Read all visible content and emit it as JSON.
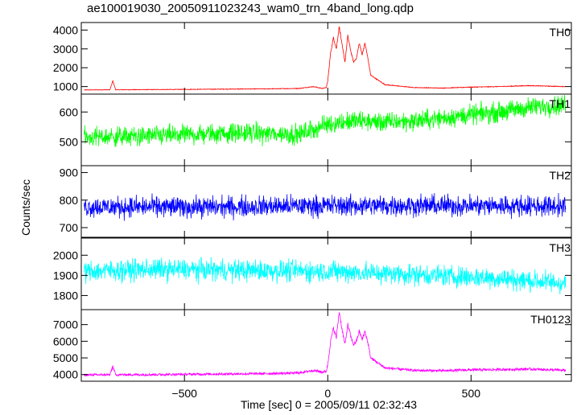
{
  "chart_data": {
    "type": "line",
    "title": "ae100019030_20050911023243_wam0_trn_4band_long.qdp",
    "xlabel": "Time [sec] 0 = 2005/09/11 02:32:43",
    "ylabel": "Counts/sec",
    "xlim": [
      -860,
      850
    ],
    "x_ticks": [
      -500,
      0,
      500
    ],
    "x_tick_labels": [
      "−500",
      "0",
      "500"
    ],
    "shared_x_axis": true,
    "panels": [
      {
        "name": "TH0",
        "color": "#ff0000",
        "ylim": [
          600,
          4400
        ],
        "y_ticks": [
          1000,
          2000,
          3000,
          4000
        ],
        "x": [
          -850,
          -760,
          -750,
          -740,
          -600,
          -400,
          -200,
          -100,
          -50,
          -20,
          -5,
          0,
          10,
          20,
          30,
          40,
          50,
          60,
          70,
          80,
          90,
          100,
          110,
          120,
          130,
          140,
          150,
          200,
          300,
          400,
          500,
          600,
          700,
          830
        ],
        "y": [
          820,
          830,
          1300,
          830,
          840,
          860,
          880,
          900,
          1000,
          900,
          950,
          1300,
          2800,
          3600,
          3000,
          4200,
          3200,
          2300,
          3700,
          2900,
          2300,
          2500,
          3300,
          2700,
          3300,
          2500,
          1600,
          1100,
          950,
          920,
          970,
          1000,
          1050,
          1000
        ]
      },
      {
        "name": "TH1",
        "color": "#00ff00",
        "ylim": [
          420,
          660
        ],
        "y_ticks": [
          500,
          600
        ],
        "x": [
          -850,
          -600,
          -300,
          -100,
          0,
          100,
          200,
          300,
          400,
          500,
          600,
          700,
          830
        ],
        "y": [
          515,
          520,
          530,
          525,
          560,
          570,
          565,
          570,
          580,
          590,
          600,
          615,
          625
        ],
        "noise": 28
      },
      {
        "name": "TH2",
        "color": "#0000ff",
        "ylim": [
          665,
          925
        ],
        "y_ticks": [
          700,
          800,
          900
        ],
        "x": [
          -850,
          -400,
          0,
          400,
          830
        ],
        "y": [
          775,
          775,
          780,
          780,
          778
        ],
        "noise": 32
      },
      {
        "name": "TH3",
        "color": "#00ffff",
        "ylim": [
          1730,
          2085
        ],
        "y_ticks": [
          1800,
          1900,
          2000
        ],
        "x": [
          -850,
          -600,
          -300,
          0,
          300,
          600,
          830
        ],
        "y": [
          1920,
          1930,
          1925,
          1920,
          1905,
          1885,
          1860
        ],
        "noise": 45
      },
      {
        "name": "TH0123",
        "color": "#ff00ff",
        "ylim": [
          3600,
          7900
        ],
        "y_ticks": [
          4000,
          5000,
          6000,
          7000
        ],
        "x": [
          -850,
          -760,
          -750,
          -740,
          -600,
          -400,
          -200,
          -100,
          -50,
          -20,
          -5,
          0,
          10,
          20,
          30,
          40,
          50,
          60,
          70,
          80,
          90,
          100,
          110,
          120,
          130,
          140,
          150,
          200,
          300,
          400,
          500,
          600,
          700,
          830
        ],
        "y": [
          3980,
          3990,
          4500,
          3990,
          4000,
          4030,
          4060,
          4100,
          4250,
          4150,
          4200,
          4600,
          6000,
          6800,
          6200,
          7800,
          6700,
          5800,
          7000,
          6300,
          5800,
          6000,
          6600,
          6100,
          6600,
          5900,
          5000,
          4400,
          4250,
          4230,
          4280,
          4300,
          4330,
          4250
        ]
      }
    ]
  }
}
